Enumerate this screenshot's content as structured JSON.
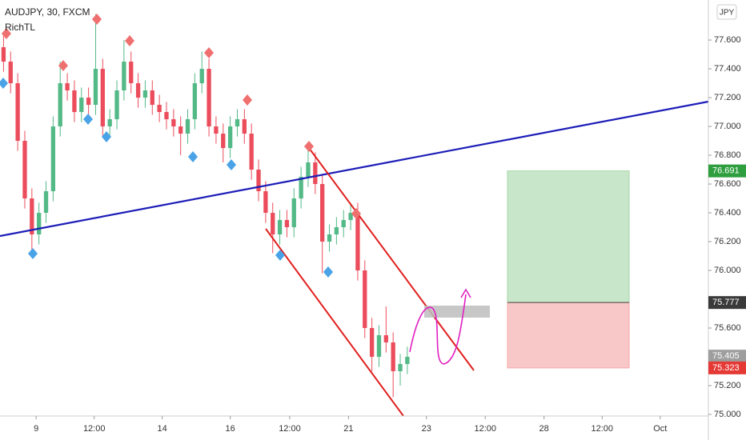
{
  "header": {
    "symbol": "AUDJPY, 30, FXCM",
    "indicator": "RichTL",
    "currency": "JPY"
  },
  "chart_data": {
    "type": "candlestick",
    "up_color": "#53b987",
    "down_color": "#eb4d5c",
    "xlim": [
      0,
      100
    ],
    "ylim": [
      74.989,
      77.878
    ],
    "x": [
      0.5,
      1.5,
      2.5,
      3.5,
      4.5,
      5.5,
      6.5,
      7.5,
      8.5,
      9.5,
      10.5,
      11.5,
      12.5,
      13.5,
      14.5,
      15.5,
      16.5,
      17.5,
      18.5,
      19.5,
      20.5,
      21.5,
      22.5,
      23.5,
      24.5,
      25.5,
      26.5,
      27.5,
      28.5,
      29.5,
      30.5,
      31.5,
      32.5,
      33.5,
      34.5,
      35.5,
      36.5,
      37.5,
      38.5,
      39.5,
      40.5,
      41.5,
      42.5,
      43.5,
      44.5,
      45.5,
      46.5,
      47.5,
      48.5,
      49.5,
      50.5,
      51.5,
      52.5,
      53.5,
      54.5,
      55.5,
      56.5,
      57.5
    ],
    "open": [
      77.55,
      77.45,
      77.3,
      76.9,
      76.5,
      76.25,
      76.4,
      76.55,
      77.0,
      77.3,
      77.25,
      77.1,
      77.2,
      77.15,
      77.4,
      77.0,
      77.05,
      77.25,
      77.45,
      77.3,
      77.2,
      77.25,
      77.15,
      77.1,
      77.05,
      77.0,
      76.95,
      77.05,
      77.3,
      77.4,
      77.0,
      76.95,
      76.85,
      77.0,
      77.05,
      76.95,
      76.7,
      76.55,
      76.4,
      76.25,
      76.35,
      76.3,
      76.5,
      76.65,
      76.75,
      76.6,
      76.2,
      76.25,
      76.3,
      76.35,
      76.4,
      76.0,
      75.6,
      75.4,
      75.55,
      75.5,
      75.3,
      75.35
    ],
    "high": [
      77.66,
      77.52,
      77.37,
      76.97,
      76.57,
      76.47,
      76.62,
      77.07,
      77.45,
      77.37,
      77.32,
      77.27,
      77.27,
      77.78,
      77.47,
      77.12,
      77.32,
      77.6,
      77.52,
      77.37,
      77.32,
      77.32,
      77.22,
      77.17,
      77.12,
      77.07,
      77.12,
      77.37,
      77.52,
      77.47,
      77.07,
      77.02,
      77.07,
      77.12,
      77.12,
      77.02,
      76.77,
      76.62,
      76.47,
      76.42,
      76.42,
      76.57,
      76.72,
      76.87,
      76.82,
      76.67,
      76.32,
      76.37,
      76.42,
      76.47,
      76.47,
      76.07,
      75.67,
      75.62,
      75.75,
      75.57,
      75.42,
      75.47
    ],
    "low": [
      77.38,
      77.23,
      76.83,
      76.43,
      76.1,
      76.18,
      76.33,
      76.48,
      76.93,
      77.18,
      77.03,
      77.03,
      77.08,
      77.08,
      76.93,
      76.93,
      76.98,
      77.18,
      77.23,
      77.13,
      77.13,
      77.08,
      77.03,
      76.98,
      76.93,
      76.8,
      76.88,
      76.98,
      77.23,
      76.93,
      76.88,
      76.75,
      76.78,
      76.93,
      76.88,
      76.63,
      76.48,
      76.33,
      76.12,
      76.18,
      76.23,
      76.23,
      76.43,
      76.58,
      76.53,
      75.98,
      76.13,
      76.18,
      76.23,
      76.28,
      75.93,
      75.53,
      75.3,
      75.33,
      75.43,
      75.12,
      75.2,
      75.28
    ],
    "close": [
      77.45,
      77.3,
      76.9,
      76.5,
      76.25,
      76.4,
      76.55,
      77.0,
      77.3,
      77.25,
      77.1,
      77.2,
      77.15,
      77.4,
      77.0,
      77.05,
      77.25,
      77.45,
      77.3,
      77.2,
      77.25,
      77.15,
      77.1,
      77.05,
      77.0,
      76.95,
      77.05,
      77.3,
      77.4,
      77.0,
      76.95,
      76.85,
      77.0,
      77.05,
      76.95,
      76.7,
      76.55,
      76.4,
      76.25,
      76.35,
      76.3,
      76.5,
      76.65,
      76.75,
      76.6,
      76.2,
      76.25,
      76.3,
      76.35,
      76.4,
      76.0,
      75.6,
      75.4,
      75.55,
      75.5,
      75.3,
      75.35,
      75.4
    ],
    "yticks": [
      {
        "value": 75.0,
        "label": "75.000"
      },
      {
        "value": 75.2,
        "label": "75.200"
      },
      {
        "value": 75.6,
        "label": "75.600"
      },
      {
        "value": 76.0,
        "label": "76.000"
      },
      {
        "value": 76.2,
        "label": "76.200"
      },
      {
        "value": 76.4,
        "label": "76.400"
      },
      {
        "value": 76.6,
        "label": "76.600"
      },
      {
        "value": 76.8,
        "label": "76.800"
      },
      {
        "value": 77.0,
        "label": "77.000"
      },
      {
        "value": 77.2,
        "label": "77.200"
      },
      {
        "value": 77.4,
        "label": "77.400"
      },
      {
        "value": 77.6,
        "label": "77.600"
      }
    ],
    "xticks": [
      {
        "value": 5.1,
        "label": "9"
      },
      {
        "value": 13.3,
        "label": "12:00"
      },
      {
        "value": 22.9,
        "label": "14"
      },
      {
        "value": 32.5,
        "label": "16"
      },
      {
        "value": 40.9,
        "label": "12:00"
      },
      {
        "value": 49.2,
        "label": "21"
      },
      {
        "value": 60.2,
        "label": "23"
      },
      {
        "value": 68.5,
        "label": "12:00"
      },
      {
        "value": 76.8,
        "label": "28"
      },
      {
        "value": 85.0,
        "label": "12:00"
      },
      {
        "value": 93.2,
        "label": "Oct"
      }
    ],
    "price_labels": [
      {
        "value": 76.691,
        "label": "76.691",
        "color": "#2e9e3e"
      },
      {
        "value": 75.777,
        "label": "75.777",
        "color": "#3a3a3a"
      },
      {
        "value": 75.405,
        "label": "75.405",
        "color": "#9e9e9e"
      },
      {
        "value": 75.323,
        "label": "75.323",
        "color": "#e53935"
      }
    ]
  }
}
